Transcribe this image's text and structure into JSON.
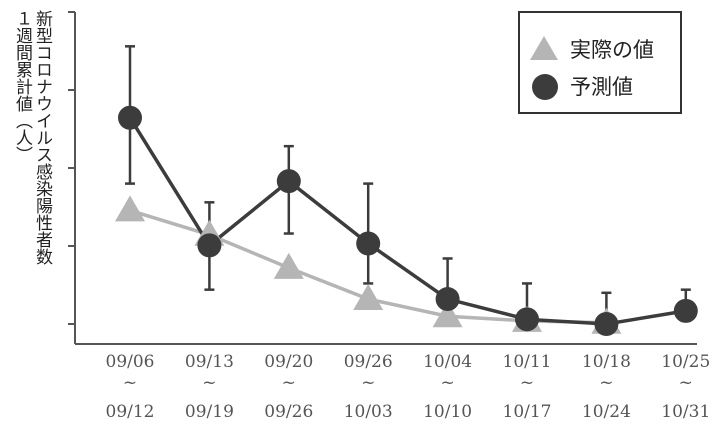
{
  "chart_data": {
    "type": "line",
    "ylabel_lines": [
      "新型コロナウイルス感染陽性者数",
      "１週間累計値（人）"
    ],
    "categories": [
      {
        "start": "09/06",
        "sep": "~",
        "end": "09/12"
      },
      {
        "start": "09/13",
        "sep": "~",
        "end": "09/19"
      },
      {
        "start": "09/20",
        "sep": "~",
        "end": "09/26"
      },
      {
        "start": "09/26",
        "sep": "~",
        "end": "10/03"
      },
      {
        "start": "10/04",
        "sep": "~",
        "end": "10/10"
      },
      {
        "start": "10/11",
        "sep": "~",
        "end": "10/17"
      },
      {
        "start": "10/18",
        "sep": "~",
        "end": "10/24"
      },
      {
        "start": "10/25",
        "sep": "~",
        "end": "10/31"
      }
    ],
    "ylim": [
      0,
      100
    ],
    "series": [
      {
        "name": "実際の値",
        "marker": "triangle",
        "color": "#b5b5b5",
        "values": [
          36.4,
          28.6,
          18.0,
          8.0,
          2.5,
          1.0,
          0.4,
          null
        ]
      },
      {
        "name": "予測値",
        "marker": "circle",
        "color": "#3c3c3c",
        "values": [
          66.1,
          25.2,
          45.8,
          25.8,
          8.0,
          1.5,
          0.0,
          4.2
        ],
        "error_low": [
          45,
          11,
          29,
          13,
          1,
          0,
          0,
          1
        ],
        "error_high": [
          89,
          39,
          57,
          45,
          21,
          13,
          10,
          11
        ]
      }
    ],
    "legend_position": "top-right",
    "grid": false
  }
}
